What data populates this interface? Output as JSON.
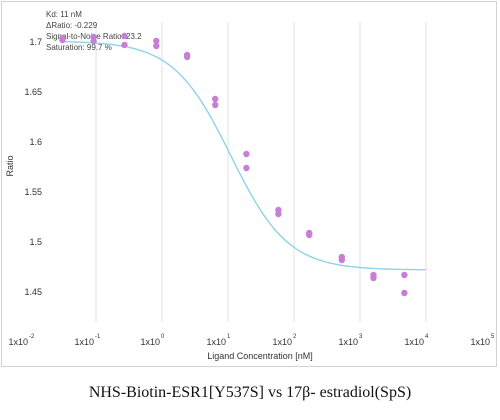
{
  "caption": "NHS-Biotin-ESR1[Y537S]  vs 17β- estradiol(SpS)",
  "stats": [
    "Kd: 11 nM",
    "ΔRatio: -0.229",
    "Signal-to-Noise Ratio: 23.2",
    "Saturation: 99.7 %"
  ],
  "chart_data": {
    "type": "scatter",
    "title": "",
    "xlabel": "Ligand Concentration [nM]",
    "ylabel": "Ratio",
    "x_scale": "log",
    "xlim": [
      0.01,
      100000
    ],
    "ylim": [
      1.42,
      1.72
    ],
    "x_ticks": [
      {
        "base": "1x10",
        "exp": "-2"
      },
      {
        "base": "1x10",
        "exp": "-1"
      },
      {
        "base": "1x10",
        "exp": "0"
      },
      {
        "base": "1x10",
        "exp": "1"
      },
      {
        "base": "1x10",
        "exp": "2"
      },
      {
        "base": "1x10",
        "exp": "3"
      },
      {
        "base": "1x10",
        "exp": "4"
      },
      {
        "base": "1x10",
        "exp": "5"
      }
    ],
    "y_ticks": [
      "1.45",
      "1.5",
      "1.55",
      "1.6",
      "1.65",
      "1.7"
    ],
    "y_tick_values": [
      1.45,
      1.5,
      1.55,
      1.6,
      1.65,
      1.7
    ],
    "grid": "vertical",
    "colors": {
      "points": "#c77fd6",
      "fit": "#8fd3ea",
      "grid": "#e2e2e2"
    },
    "points": [
      {
        "x": 0.031,
        "y": 1.704
      },
      {
        "x": 0.031,
        "y": 1.702
      },
      {
        "x": 0.092,
        "y": 1.705
      },
      {
        "x": 0.092,
        "y": 1.701
      },
      {
        "x": 0.27,
        "y": 1.706
      },
      {
        "x": 0.27,
        "y": 1.697
      },
      {
        "x": 0.82,
        "y": 1.701
      },
      {
        "x": 0.82,
        "y": 1.696
      },
      {
        "x": 2.4,
        "y": 1.687
      },
      {
        "x": 2.4,
        "y": 1.685
      },
      {
        "x": 6.4,
        "y": 1.643
      },
      {
        "x": 6.4,
        "y": 1.637
      },
      {
        "x": 19,
        "y": 1.588
      },
      {
        "x": 19,
        "y": 1.574
      },
      {
        "x": 58,
        "y": 1.532
      },
      {
        "x": 58,
        "y": 1.528
      },
      {
        "x": 170,
        "y": 1.509
      },
      {
        "x": 170,
        "y": 1.507
      },
      {
        "x": 530,
        "y": 1.485
      },
      {
        "x": 530,
        "y": 1.482
      },
      {
        "x": 1600,
        "y": 1.467
      },
      {
        "x": 1600,
        "y": 1.464
      },
      {
        "x": 4700,
        "y": 1.467
      },
      {
        "x": 4700,
        "y": 1.449
      }
    ],
    "fit": {
      "model": "sigmoid",
      "top": 1.701,
      "bottom": 1.472,
      "kd": 11,
      "hill": 1.0,
      "x_range": [
        0.03,
        10000
      ]
    }
  }
}
